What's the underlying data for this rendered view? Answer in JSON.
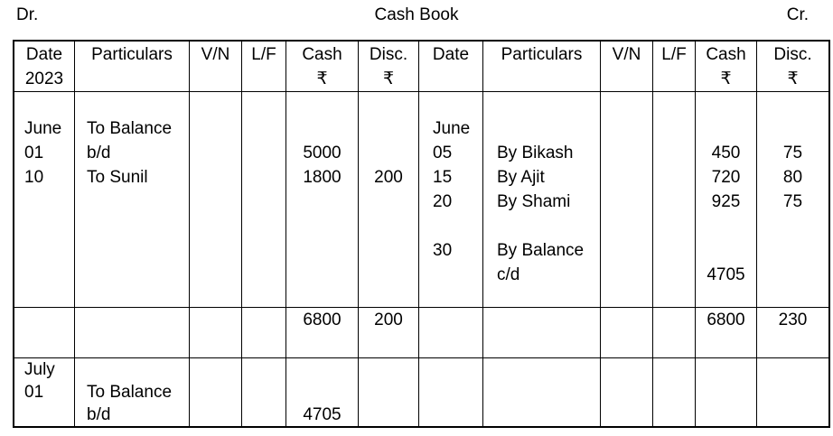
{
  "title": {
    "dr_label": "Dr.",
    "book_title": "Cash Book",
    "cr_label": "Cr."
  },
  "columns": {
    "date": "Date",
    "year": "2023",
    "particulars": "Particulars",
    "voucher_no": "V/N",
    "ledger_folio": "L/F",
    "cash": "Cash",
    "discount": "Disc.",
    "currency_symbol": "₹"
  },
  "debit_side": {
    "entries": {
      "dates": [
        "",
        "June",
        "01",
        "10"
      ],
      "particulars": [
        "",
        "To Balance",
        "b/d",
        "To Sunil"
      ],
      "cash": [
        "",
        "",
        "5000",
        "1800"
      ],
      "discount": [
        "",
        "",
        "",
        "200"
      ]
    },
    "totals": {
      "cash": "6800",
      "discount": "200"
    },
    "balance_brought_down": {
      "dates": [
        "July",
        "01",
        ""
      ],
      "particulars": [
        "",
        "To Balance",
        "b/d"
      ],
      "cash": [
        "",
        "",
        "4705"
      ],
      "discount": [
        "",
        "",
        ""
      ]
    }
  },
  "credit_side": {
    "entries": {
      "dates": [
        "",
        "June",
        "05",
        "15",
        "20",
        "",
        "30",
        ""
      ],
      "particulars": [
        "",
        "",
        "By Bikash",
        "By Ajit",
        "By Shami",
        "",
        "By Balance",
        "c/d"
      ],
      "cash": [
        "",
        "",
        "450",
        "720",
        "925",
        "",
        "",
        "4705"
      ],
      "discount": [
        "",
        "",
        "75",
        "80",
        "75",
        "",
        "",
        ""
      ]
    },
    "totals": {
      "cash": "6800",
      "discount": "230"
    }
  }
}
